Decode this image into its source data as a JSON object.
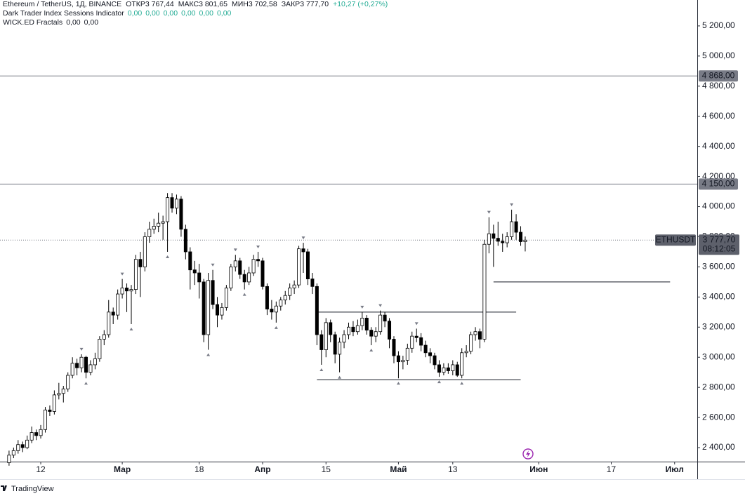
{
  "chart_data": {
    "type": "candlestick",
    "header": {
      "symbol": "Ethereum / TetherUS, 1Д, BINANCE",
      "open_label": "ОТКР",
      "open": "3 767,44",
      "high_label": "МАКС",
      "high": "3 801,65",
      "low_label": "МИН",
      "low": "3 702,58",
      "close_label": "ЗАКР",
      "close": "3 777,70",
      "change": "+10,27 (+0,27%)"
    },
    "indicators": [
      {
        "name": "Dark Trader Index Sessions Indicator",
        "values": [
          "0,00",
          "0,00",
          "0,00",
          "0,00",
          "0,00",
          "0,00"
        ],
        "color": "#22ab94"
      },
      {
        "name": "WICK.ED Fractals",
        "values": [
          "0,00",
          "0,00"
        ],
        "color": "#131722"
      }
    ],
    "ohlc": [
      [
        2300,
        2380,
        2280,
        2350
      ],
      [
        2350,
        2400,
        2330,
        2380
      ],
      [
        2380,
        2450,
        2360,
        2420
      ],
      [
        2420,
        2440,
        2370,
        2400
      ],
      [
        2400,
        2480,
        2390,
        2450
      ],
      [
        2450,
        2540,
        2430,
        2500
      ],
      [
        2500,
        2520,
        2450,
        2480
      ],
      [
        2480,
        2550,
        2460,
        2520
      ],
      [
        2520,
        2670,
        2500,
        2650
      ],
      [
        2650,
        2680,
        2610,
        2640
      ],
      [
        2640,
        2780,
        2620,
        2750
      ],
      [
        2750,
        2830,
        2720,
        2760
      ],
      [
        2760,
        2810,
        2700,
        2790
      ],
      [
        2790,
        2900,
        2770,
        2880
      ],
      [
        2880,
        3000,
        2860,
        2960
      ],
      [
        2960,
        2990,
        2880,
        2930
      ],
      [
        2930,
        3020,
        2900,
        3000
      ],
      [
        3000,
        3010,
        2860,
        2900
      ],
      [
        2900,
        2980,
        2880,
        2950
      ],
      [
        2950,
        3030,
        2920,
        2990
      ],
      [
        2990,
        3140,
        2970,
        3120
      ],
      [
        3120,
        3180,
        3080,
        3150
      ],
      [
        3150,
        3380,
        3130,
        3300
      ],
      [
        3300,
        3330,
        3220,
        3280
      ],
      [
        3280,
        3450,
        3250,
        3420
      ],
      [
        3420,
        3520,
        3390,
        3460
      ],
      [
        3460,
        3490,
        3300,
        3440
      ],
      [
        3440,
        3480,
        3220,
        3450
      ],
      [
        3450,
        3680,
        3420,
        3650
      ],
      [
        3650,
        3700,
        3400,
        3600
      ],
      [
        3600,
        3830,
        3570,
        3800
      ],
      [
        3800,
        3900,
        3760,
        3850
      ],
      [
        3850,
        3920,
        3820,
        3870
      ],
      [
        3870,
        3960,
        3830,
        3890
      ],
      [
        3890,
        3940,
        3780,
        3900
      ],
      [
        3900,
        4090,
        3700,
        4060
      ],
      [
        4060,
        4090,
        3960,
        3990
      ],
      [
        3990,
        4080,
        3950,
        4050
      ],
      [
        4050,
        4070,
        3800,
        3850
      ],
      [
        3850,
        3880,
        3650,
        3700
      ],
      [
        3700,
        3730,
        3450,
        3580
      ],
      [
        3580,
        3640,
        3480,
        3560
      ],
      [
        3560,
        3620,
        3390,
        3500
      ],
      [
        3500,
        3520,
        3100,
        3150
      ],
      [
        3150,
        3560,
        3050,
        3510
      ],
      [
        3510,
        3580,
        3320,
        3350
      ],
      [
        3350,
        3400,
        3200,
        3280
      ],
      [
        3280,
        3360,
        3250,
        3330
      ],
      [
        3330,
        3480,
        3310,
        3460
      ],
      [
        3460,
        3620,
        3440,
        3600
      ],
      [
        3600,
        3680,
        3570,
        3640
      ],
      [
        3640,
        3660,
        3520,
        3550
      ],
      [
        3550,
        3580,
        3450,
        3500
      ],
      [
        3500,
        3600,
        3480,
        3560
      ],
      [
        3560,
        3680,
        3540,
        3650
      ],
      [
        3650,
        3700,
        3600,
        3640
      ],
      [
        3640,
        3660,
        3450,
        3470
      ],
      [
        3470,
        3490,
        3280,
        3320
      ],
      [
        3320,
        3380,
        3250,
        3300
      ],
      [
        3300,
        3370,
        3230,
        3340
      ],
      [
        3340,
        3400,
        3310,
        3380
      ],
      [
        3380,
        3440,
        3350,
        3410
      ],
      [
        3410,
        3490,
        3380,
        3460
      ],
      [
        3460,
        3510,
        3420,
        3480
      ],
      [
        3480,
        3740,
        3460,
        3720
      ],
      [
        3720,
        3760,
        3560,
        3700
      ],
      [
        3700,
        3720,
        3480,
        3520
      ],
      [
        3520,
        3560,
        3420,
        3470
      ],
      [
        3470,
        3490,
        3080,
        3150
      ],
      [
        3150,
        3180,
        2950,
        3050
      ],
      [
        3050,
        3260,
        3000,
        3230
      ],
      [
        3230,
        3250,
        3100,
        3150
      ],
      [
        3150,
        3170,
        2960,
        3020
      ],
      [
        3020,
        3130,
        2900,
        3100
      ],
      [
        3100,
        3180,
        3060,
        3150
      ],
      [
        3150,
        3230,
        3120,
        3200
      ],
      [
        3200,
        3240,
        3140,
        3170
      ],
      [
        3170,
        3250,
        3150,
        3210
      ],
      [
        3210,
        3300,
        3180,
        3260
      ],
      [
        3260,
        3280,
        3150,
        3180
      ],
      [
        3180,
        3200,
        3080,
        3140
      ],
      [
        3140,
        3200,
        3100,
        3170
      ],
      [
        3170,
        3310,
        3150,
        3280
      ],
      [
        3280,
        3300,
        3200,
        3240
      ],
      [
        3240,
        3260,
        3060,
        3120
      ],
      [
        3120,
        3140,
        2960,
        3010
      ],
      [
        3010,
        3040,
        2860,
        2970
      ],
      [
        2970,
        3010,
        2920,
        2980
      ],
      [
        2980,
        3090,
        2950,
        3060
      ],
      [
        3060,
        3170,
        3030,
        3140
      ],
      [
        3140,
        3190,
        3100,
        3130
      ],
      [
        3130,
        3160,
        3040,
        3080
      ],
      [
        3080,
        3110,
        3000,
        3030
      ],
      [
        3030,
        3060,
        2960,
        3010
      ],
      [
        3010,
        3030,
        2920,
        2950
      ],
      [
        2950,
        2980,
        2870,
        2900
      ],
      [
        2900,
        2960,
        2880,
        2930
      ],
      [
        2930,
        2960,
        2890,
        2910
      ],
      [
        2910,
        2980,
        2880,
        2950
      ],
      [
        2950,
        2970,
        2870,
        2880
      ],
      [
        2880,
        3060,
        2860,
        3030
      ],
      [
        3030,
        3080,
        3000,
        3040
      ],
      [
        3040,
        3170,
        3020,
        3150
      ],
      [
        3150,
        3200,
        3110,
        3170
      ],
      [
        3170,
        3190,
        3060,
        3120
      ],
      [
        3120,
        3780,
        3100,
        3750
      ],
      [
        3750,
        3930,
        3690,
        3820
      ],
      [
        3820,
        3880,
        3600,
        3790
      ],
      [
        3790,
        3900,
        3740,
        3770
      ],
      [
        3770,
        3820,
        3700,
        3760
      ],
      [
        3760,
        3830,
        3730,
        3800
      ],
      [
        3800,
        3980,
        3780,
        3900
      ],
      [
        3900,
        3950,
        3780,
        3830
      ],
      [
        3830,
        3870,
        3740,
        3767.44
      ],
      [
        3767.44,
        3801.65,
        3702.58,
        3777.7
      ]
    ],
    "up_color": "#ffffff",
    "down_color": "#000000",
    "border_color": "#000000",
    "xlim": [
      -2,
      152
    ],
    "xticks": [
      {
        "value": 7,
        "label": "12"
      },
      {
        "value": 25,
        "label": "Мар"
      },
      {
        "value": 42,
        "label": "18"
      },
      {
        "value": 56,
        "label": "Апр"
      },
      {
        "value": 70,
        "label": "15"
      },
      {
        "value": 86,
        "label": "Май"
      },
      {
        "value": 98,
        "label": "13"
      },
      {
        "value": 117,
        "label": "Июн"
      },
      {
        "value": 133,
        "label": "17"
      },
      {
        "value": 147,
        "label": "Июл"
      }
    ],
    "ylim": [
      2307,
      5372
    ],
    "yticks": [
      {
        "value": 2400,
        "label": "2 400,00"
      },
      {
        "value": 2600,
        "label": "2 600,00"
      },
      {
        "value": 2800,
        "label": "2 800,00"
      },
      {
        "value": 3000,
        "label": "3 000,00"
      },
      {
        "value": 3200,
        "label": "3 200,00"
      },
      {
        "value": 3400,
        "label": "3 400,00"
      },
      {
        "value": 3600,
        "label": "3 600,00"
      },
      {
        "value": 3800,
        "label": "3 800,00"
      },
      {
        "value": 4000,
        "label": "4 000,00"
      },
      {
        "value": 4200,
        "label": "4 200,00"
      },
      {
        "value": 4400,
        "label": "4 400,00"
      },
      {
        "value": 4600,
        "label": "4 600,00"
      },
      {
        "value": 4800,
        "label": "4 800,00"
      },
      {
        "value": 5000,
        "label": "5 000,00"
      },
      {
        "value": 5200,
        "label": "5 200,00"
      }
    ],
    "hlines": [
      {
        "value": 4868,
        "label": "4 868,00"
      },
      {
        "value": 4150,
        "label": "4 150,00"
      }
    ],
    "segments": [
      {
        "value": 3300,
        "x": [
          68,
          112
        ]
      },
      {
        "value": 2850,
        "x": [
          68,
          113
        ]
      },
      {
        "value": 3500,
        "x": [
          107,
          146
        ]
      }
    ],
    "last_price": {
      "value": 3777.7,
      "symbol": "ETHUSDT",
      "label": "3 777,70",
      "countdown": "08:12:05"
    },
    "brand": "TradingView"
  }
}
